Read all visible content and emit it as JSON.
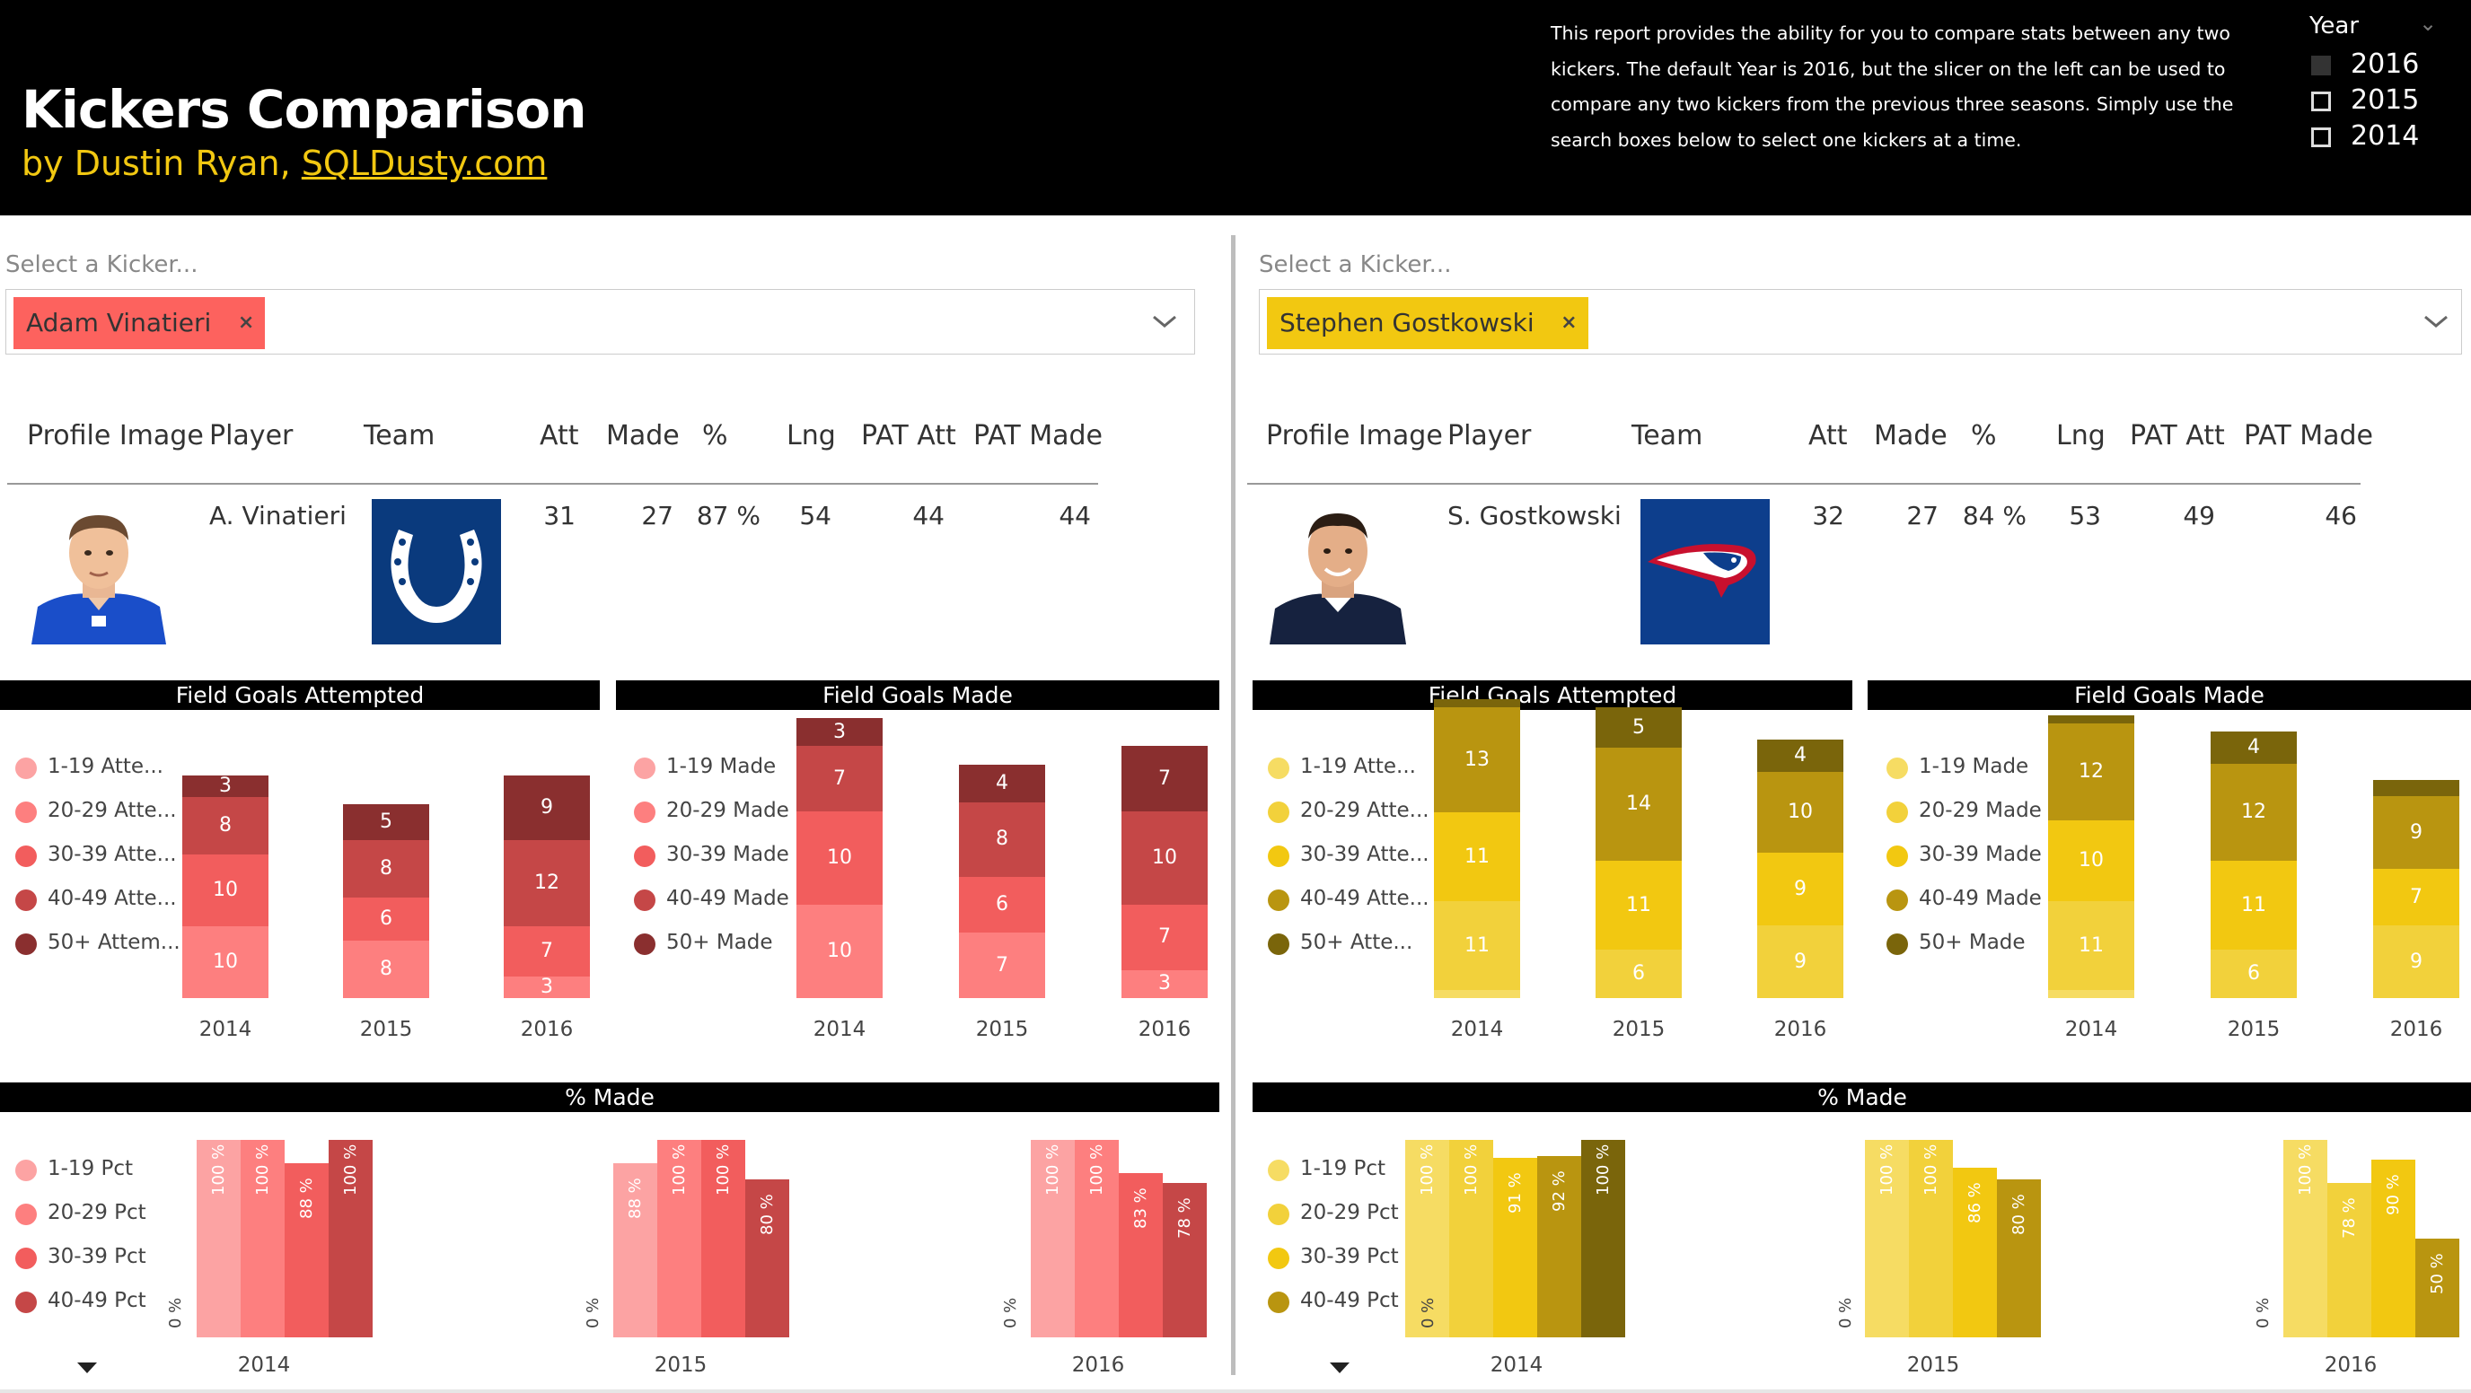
{
  "header": {
    "title": "Kickers Comparison",
    "byline_prefix": "by Dustin Ryan, ",
    "byline_link": "SQLDusty.com",
    "description": "This report provides the ability for you to compare stats between any two kickers. The default Year is 2016, but the slicer on the left can be used to compare any two kickers from the previous three seasons. Simply use the search boxes below to select one kickers at a time."
  },
  "year_slicer": {
    "label": "Year",
    "options": [
      {
        "label": "2016",
        "checked": true
      },
      {
        "label": "2015",
        "checked": false
      },
      {
        "label": "2014",
        "checked": false
      }
    ]
  },
  "table_headers": {
    "profile": "Profile Image",
    "player": "Player",
    "team": "Team",
    "att": "Att",
    "made": "Made",
    "pct": "%",
    "lng": "Lng",
    "pat_att": "PAT Att",
    "pat_made": "PAT Made"
  },
  "left": {
    "slicer_label": "Select a Kicker...",
    "selected": "Adam Vinatieri",
    "chip_color": "#fd625e",
    "row": {
      "player": "A. Vinatieri",
      "att": "31",
      "made": "27",
      "pct": "87 %",
      "lng": "54",
      "pat_att": "44",
      "pat_made": "44"
    },
    "team_logo": "horseshoe-logo",
    "colors": [
      "#fca3a3",
      "#fd7f7f",
      "#f25d5d",
      "#c54747",
      "#8a2f2f"
    ],
    "fga": {
      "title": "Field Goals Attempted",
      "legend": [
        "1-19 Atte...",
        "20-29 Atte...",
        "30-39 Atte...",
        "40-49 Atte...",
        "50+ Attem..."
      ],
      "years": [
        {
          "year": "2014",
          "values": [
            0,
            10,
            10,
            8,
            3
          ]
        },
        {
          "year": "2015",
          "values": [
            0,
            8,
            6,
            8,
            5
          ]
        },
        {
          "year": "2016",
          "values": [
            0,
            3,
            7,
            12,
            9
          ]
        }
      ],
      "max": 35
    },
    "fgm": {
      "title": "Field Goals Made",
      "legend": [
        "1-19 Made",
        "20-29 Made",
        "30-39 Made",
        "40-49 Made",
        "50+ Made"
      ],
      "years": [
        {
          "year": "2014",
          "values": [
            0,
            10,
            10,
            7,
            3
          ]
        },
        {
          "year": "2015",
          "values": [
            0,
            7,
            6,
            8,
            4
          ]
        },
        {
          "year": "2016",
          "values": [
            0,
            3,
            7,
            10,
            7
          ]
        }
      ],
      "max": 30
    },
    "pct": {
      "title": "% Made",
      "legend": [
        "1-19 Pct",
        "20-29 Pct",
        "30-39 Pct",
        "40-49 Pct"
      ],
      "zero": "0 %",
      "years": [
        {
          "year": "2014",
          "values": [
            100,
            100,
            88,
            100
          ],
          "labels": [
            "100 %",
            "100 %",
            "88 %",
            "100 %"
          ]
        },
        {
          "year": "2015",
          "values": [
            88,
            100,
            100,
            80
          ],
          "labels": [
            "88 %",
            "100 %",
            "100 %",
            "80 %"
          ]
        },
        {
          "year": "2016",
          "values": [
            100,
            100,
            83,
            78
          ],
          "labels": [
            "100 %",
            "100 %",
            "83 %",
            "78 %"
          ]
        }
      ]
    }
  },
  "right": {
    "slicer_label": "Select a Kicker...",
    "selected": "Stephen Gostkowski",
    "chip_color": "#f2c811",
    "row": {
      "player": "S. Gostkowski",
      "att": "32",
      "made": "27",
      "pct": "84 %",
      "lng": "53",
      "pat_att": "49",
      "pat_made": "46"
    },
    "team_logo": "patriots-logo",
    "colors": [
      "#f6dc63",
      "#f2d13b",
      "#f2c811",
      "#b99510",
      "#7a650b"
    ],
    "fga": {
      "title": "Field Goals Attempted",
      "legend": [
        "1-19 Atte...",
        "20-29 Atte...",
        "30-39 Atte...",
        "40-49 Atte...",
        "50+ Atte..."
      ],
      "legend_last": "50+ Attem...",
      "years": [
        {
          "year": "2014",
          "values": [
            1,
            11,
            11,
            13,
            1
          ]
        },
        {
          "year": "2015",
          "values": [
            0,
            6,
            11,
            14,
            5
          ]
        },
        {
          "year": "2016",
          "values": [
            0,
            9,
            9,
            10,
            4
          ]
        }
      ],
      "max": 40
    },
    "fgm": {
      "title": "Field Goals Made",
      "legend": [
        "1-19 Made",
        "20-29 Made",
        "30-39 Made",
        "40-49 Made",
        "50+ Made"
      ],
      "years": [
        {
          "year": "2014",
          "values": [
            1,
            11,
            10,
            12,
            1
          ]
        },
        {
          "year": "2015",
          "values": [
            0,
            6,
            11,
            12,
            4
          ]
        },
        {
          "year": "2016",
          "values": [
            0,
            9,
            7,
            9,
            2
          ]
        }
      ],
      "max": 40
    },
    "pct": {
      "title": "% Made",
      "legend": [
        "1-19 Pct",
        "20-29 Pct",
        "30-39 Pct",
        "40-49 Pct"
      ],
      "zero": "0 %",
      "years": [
        {
          "year": "2014",
          "values": [
            100,
            100,
            91,
            92,
            100
          ],
          "labels": [
            "100 %",
            "100 %",
            "91 %",
            "92 %",
            "100 %"
          ]
        },
        {
          "year": "2015",
          "values": [
            100,
            100,
            86,
            80
          ],
          "labels": [
            "100 %",
            "100 %",
            "86 %",
            "80 %"
          ]
        },
        {
          "year": "2016",
          "values": [
            100,
            78,
            90,
            50
          ],
          "labels": [
            "100 %",
            "78 %",
            "90 %",
            "50 %"
          ]
        }
      ]
    }
  }
}
